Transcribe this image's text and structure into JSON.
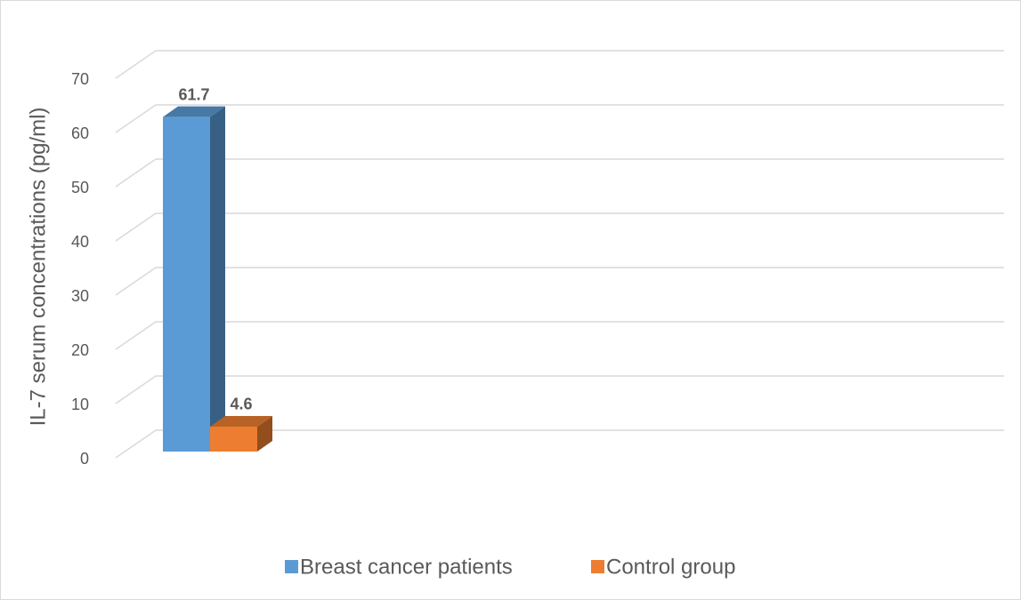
{
  "chart_data": {
    "type": "bar3d",
    "y_label": "IL-7 serum concentrations (pg/ml)",
    "categories": [
      null
    ],
    "series": [
      {
        "name": "Breast cancer patients",
        "color": "#5b9bd5",
        "values": [
          61.7
        ]
      },
      {
        "name": "Control group",
        "color": "#ed7d31",
        "values": [
          4.6
        ]
      }
    ],
    "ylim": [
      0,
      70
    ],
    "yticks": [
      0,
      10,
      20,
      30,
      40,
      50,
      60,
      70
    ],
    "grid": true,
    "legend": "bottom"
  }
}
